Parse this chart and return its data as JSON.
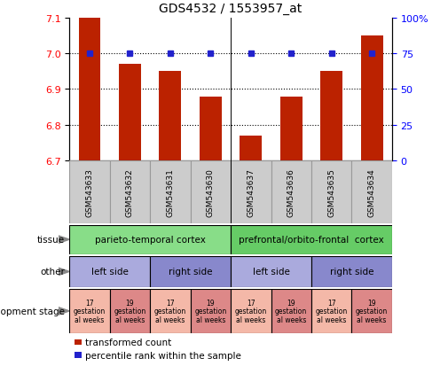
{
  "title": "GDS4532 / 1553957_at",
  "samples": [
    "GSM543633",
    "GSM543632",
    "GSM543631",
    "GSM543630",
    "GSM543637",
    "GSM543636",
    "GSM543635",
    "GSM543634"
  ],
  "bar_values": [
    7.1,
    6.97,
    6.95,
    6.88,
    6.77,
    6.88,
    6.95,
    7.05
  ],
  "percentile_values": [
    75,
    75,
    75,
    75,
    75,
    75,
    75,
    75
  ],
  "ylim_left": [
    6.7,
    7.1
  ],
  "ylim_right": [
    0,
    100
  ],
  "yticks_left": [
    6.7,
    6.8,
    6.9,
    7.0,
    7.1
  ],
  "yticks_right": [
    0,
    25,
    50,
    75,
    100
  ],
  "bar_color": "#bb2200",
  "percentile_color": "#2222cc",
  "tissue_labels": [
    {
      "label": "parieto-temporal cortex",
      "start": 0,
      "end": 4,
      "color": "#88dd88"
    },
    {
      "label": "prefrontal/orbito-frontal  cortex",
      "start": 4,
      "end": 8,
      "color": "#66cc66"
    }
  ],
  "other_labels": [
    {
      "label": "left side",
      "start": 0,
      "end": 2,
      "color": "#aaaadd"
    },
    {
      "label": "right side",
      "start": 2,
      "end": 4,
      "color": "#8888cc"
    },
    {
      "label": "left side",
      "start": 4,
      "end": 6,
      "color": "#aaaadd"
    },
    {
      "label": "right side",
      "start": 6,
      "end": 8,
      "color": "#8888cc"
    }
  ],
  "dev_stage_labels": [
    {
      "label": "17\ngestation\nal weeks",
      "start": 0,
      "end": 1,
      "color": "#f4b8a8"
    },
    {
      "label": "19\ngestation\nal weeks",
      "start": 1,
      "end": 2,
      "color": "#dd8888"
    },
    {
      "label": "17\ngestation\nal weeks",
      "start": 2,
      "end": 3,
      "color": "#f4b8a8"
    },
    {
      "label": "19\ngestation\nal weeks",
      "start": 3,
      "end": 4,
      "color": "#dd8888"
    },
    {
      "label": "17\ngestation\nal weeks",
      "start": 4,
      "end": 5,
      "color": "#f4b8a8"
    },
    {
      "label": "19\ngestation\nal weeks",
      "start": 5,
      "end": 6,
      "color": "#dd8888"
    },
    {
      "label": "17\ngestation\nal weeks",
      "start": 6,
      "end": 7,
      "color": "#f4b8a8"
    },
    {
      "label": "19\ngestation\nal weeks",
      "start": 7,
      "end": 8,
      "color": "#dd8888"
    }
  ],
  "legend_items": [
    {
      "label": "transformed count",
      "color": "#bb2200"
    },
    {
      "label": "percentile rank within the sample",
      "color": "#2222cc"
    }
  ],
  "background_color": "#ffffff",
  "sample_box_color": "#cccccc",
  "sample_box_edge": "#999999"
}
